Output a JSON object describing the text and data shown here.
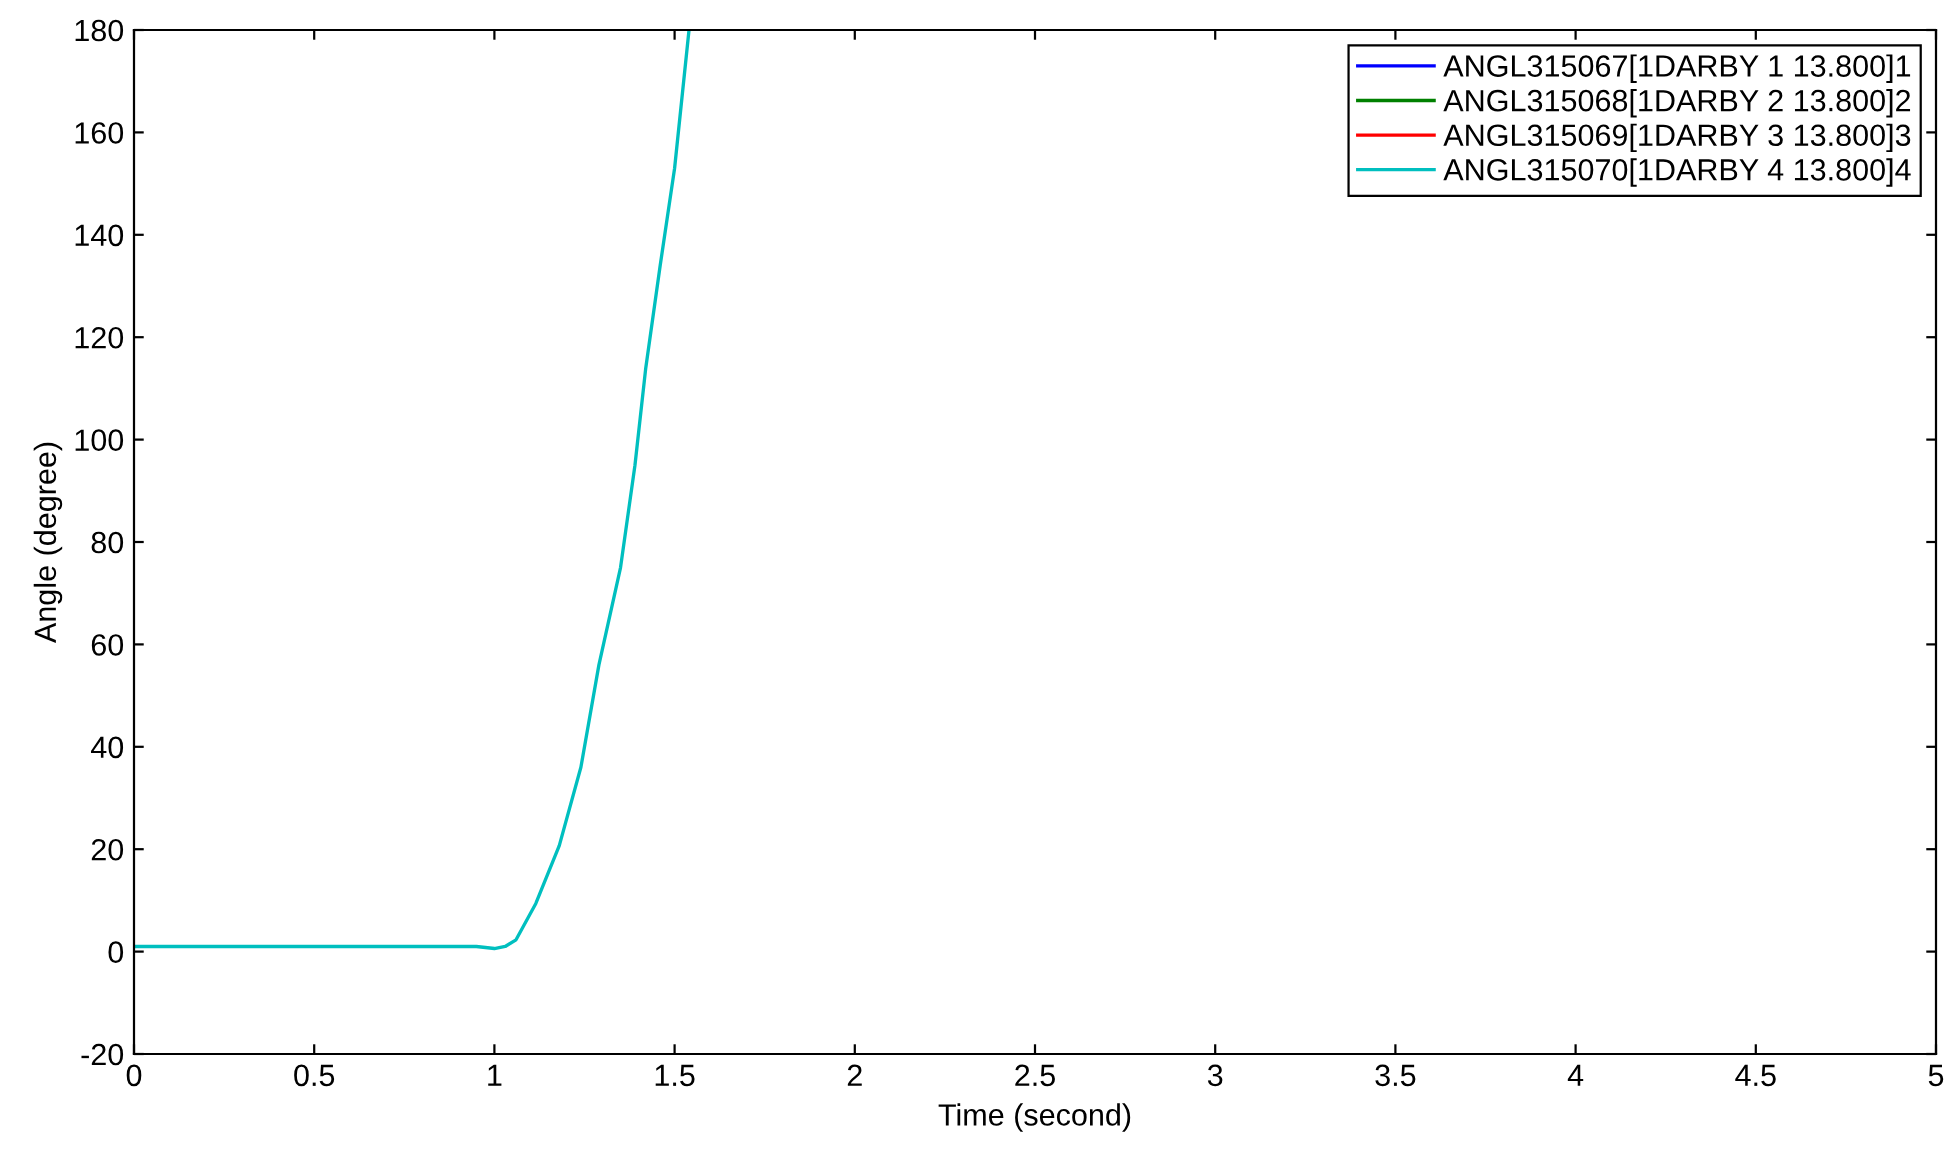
{
  "chart_data": {
    "type": "line",
    "xlabel": "Time (second)",
    "ylabel": "Angle (degree)",
    "x": [
      0,
      0.5,
      0.95,
      1.0,
      1.03,
      1.06,
      1.115,
      1.18,
      1.24,
      1.29,
      1.35,
      1.39,
      1.42,
      1.46,
      1.5,
      1.54
    ],
    "series": [
      {
        "name": "ANGL315067[1DARBY 1 13.800]1",
        "color": "#0000ff",
        "values": [
          null,
          null,
          null,
          null,
          null,
          null,
          null,
          null,
          null,
          null,
          null,
          null,
          null,
          null,
          null,
          null
        ]
      },
      {
        "name": "ANGL315068[1DARBY 2 13.800]2",
        "color": "#008000",
        "values": [
          null,
          null,
          null,
          null,
          null,
          null,
          null,
          null,
          null,
          null,
          null,
          null,
          null,
          null,
          null,
          null
        ]
      },
      {
        "name": "ANGL315069[1DARBY 3 13.800]3",
        "color": "#ff0000",
        "values": [
          null,
          null,
          null,
          null,
          null,
          null,
          null,
          null,
          null,
          null,
          null,
          null,
          null,
          null,
          null,
          null
        ]
      },
      {
        "name": "ANGL315070[1DARBY 4 13.800]4",
        "color": "#00bfbf",
        "values": [
          1,
          1,
          1,
          0.6,
          1,
          2.3,
          9.4,
          20.7,
          36,
          56,
          75,
          95,
          114,
          134,
          153,
          180
        ]
      }
    ],
    "xlim": [
      0,
      5
    ],
    "ylim": [
      -20,
      180
    ],
    "xticks": [
      0,
      0.5,
      1,
      1.5,
      2,
      2.5,
      3,
      3.5,
      4,
      4.5,
      5
    ],
    "yticks": [
      -20,
      0,
      20,
      40,
      60,
      80,
      100,
      120,
      140,
      160,
      180
    ],
    "legend": "top right"
  }
}
